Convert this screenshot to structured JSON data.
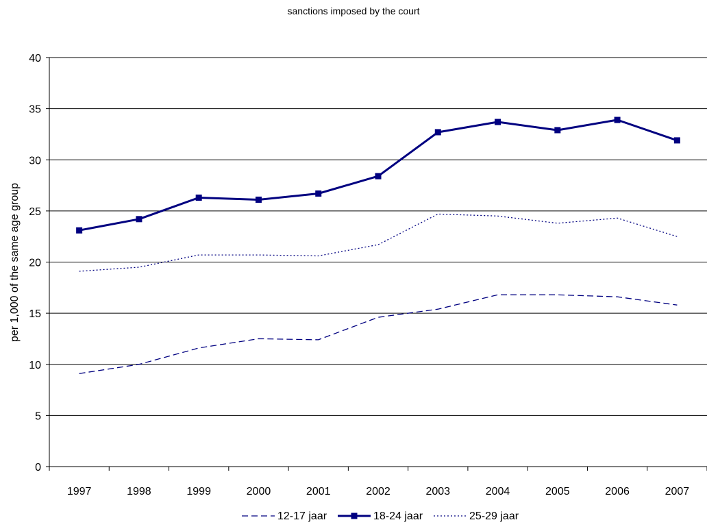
{
  "chart_data": {
    "type": "line",
    "title": "sanctions imposed by the court",
    "xlabel": "",
    "ylabel": "per 1,000 of the same age group",
    "categories": [
      "1997",
      "1998",
      "1999",
      "2000",
      "2001",
      "2002",
      "2003",
      "2004",
      "2005",
      "2006",
      "2007"
    ],
    "ylim": [
      0,
      40
    ],
    "yticks": [
      0,
      5,
      10,
      15,
      20,
      25,
      30,
      35,
      40
    ],
    "grid": "horizontal",
    "legend_position": "bottom",
    "series": [
      {
        "name": "12-17 jaar",
        "style": "dashed",
        "color": "#000080",
        "values": [
          9.1,
          10.0,
          11.6,
          12.5,
          12.4,
          14.6,
          15.4,
          16.8,
          16.8,
          16.6,
          15.8
        ]
      },
      {
        "name": "18-24 jaar",
        "style": "solid-markers",
        "color": "#000080",
        "values": [
          23.1,
          24.2,
          26.3,
          26.1,
          26.7,
          28.4,
          32.7,
          33.7,
          32.9,
          33.9,
          31.9
        ]
      },
      {
        "name": "25-29 jaar",
        "style": "dotted",
        "color": "#000080",
        "values": [
          19.1,
          19.5,
          20.7,
          20.7,
          20.6,
          21.7,
          24.7,
          24.5,
          23.8,
          24.3,
          22.5
        ]
      }
    ]
  }
}
